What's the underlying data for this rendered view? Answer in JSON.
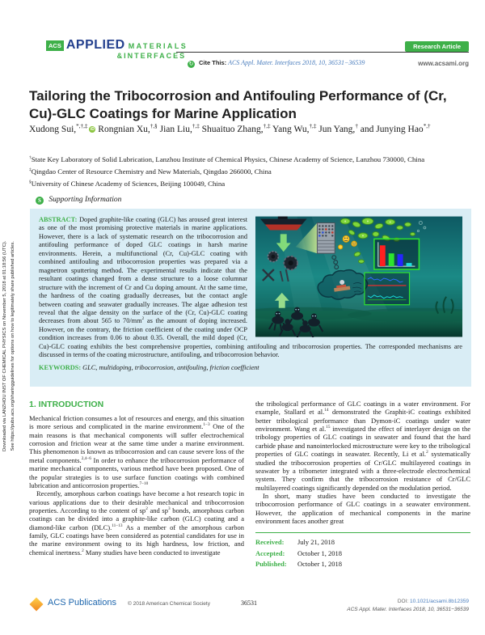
{
  "colors": {
    "acs_green": "#3eb049",
    "applied_blue": "#24408e",
    "link_blue": "#4a7dbd",
    "abstract_bg": "#d9edf5"
  },
  "sidebar": {
    "line1": "Downloaded via LANZHOU INST OF CHEMICAL PHYSICS on November 5, 2018 at 01:18:56 (UTC).",
    "line2": "See https://pubs.acs.org/sharingguidelines for options on how to legitimately share published articles."
  },
  "header": {
    "logo_acs": "ACS",
    "logo_applied": "APPLIED",
    "logo_materials": "MATERIALS",
    "logo_interfaces": "&INTERFACES",
    "cite_icon": "↻",
    "cite_label": "Cite This:",
    "cite_ref": "ACS Appl. Mater. Interfaces 2018, 10, 36531−36539",
    "badge": "Research Article",
    "website": "www.acsami.org"
  },
  "article": {
    "title": "Tailoring the Tribocorrosion and Antifouling Performance of (Cr, Cu)-GLC Coatings for Marine Application",
    "authors": [
      {
        "name": "Xudong Sui,",
        "sup": "*,†,‡",
        "orcid": true
      },
      {
        "name": "Rongnian Xu,",
        "sup": "†,§"
      },
      {
        "name": "Jian Liu,",
        "sup": "†,‡"
      },
      {
        "name": "Shuaituo Zhang,",
        "sup": "†,‡"
      },
      {
        "name": "Yang Wu,",
        "sup": "†,‡"
      },
      {
        "name": "Jun Yang,",
        "sup": "†"
      },
      {
        "name": "and Junying Hao",
        "sup": "*,†"
      }
    ],
    "affiliations": [
      {
        "sup": "†",
        "text": "State Key Laboratory of Solid Lubrication, Lanzhou Institute of Chemical Physics, Chinese Academy of Science, Lanzhou 730000, China"
      },
      {
        "sup": "‡",
        "text": "Qingdao Center of Resource Chemistry and New Materials, Qingdao 266000, China"
      },
      {
        "sup": "§",
        "text": "University of Chinese Academy of Sciences, Beijing 100049, China"
      }
    ],
    "supporting_icon": "S",
    "supporting": "Supporting Information",
    "abstract_label": "ABSTRACT: ",
    "abstract": [
      "Doped graphite-like coating (GLC) has aroused great interest as one of the most promising protective materials in marine applications. However, there is a lack of systematic research on the tribocorrosion and antifouling performance of doped GLC coatings in harsh marine environments. Herein, a multifunctional (Cr, Cu)-GLC coating with combined antifouling and tribocorrosion properties was prepared via a magnetron sputtering method. The experimental results indicate that the resultant coatings changed from a dense structure to a loose columnar structure with the increment of Cr and Cu doping amount. At the same time, the hardness of the coating gradually decreases, but the contact angle between coating and seawater gradually increases. The algae adhesion test reveal that the algae density on the surface of the (Cr, Cu)-GLC coating decreases from about 565 to 70/mm",
      {
        "s": "2"
      },
      " as the amount of doping increased. However, on the contrary, the friction coefficient of the coating under OCP condition increases from 0.06 to about 0.35. Overall, the mild doped (Cr, Cu)-GLC coating exhibits the best comprehensive properties, combining antifouling and tribocorrosion properties. The corresponded mechanisms are discussed in terms of the coating microstructure, antifouling, and tribocorrosion behavior."
    ],
    "keywords_label": "KEYWORDS: ",
    "keywords": "GLC, multidoping, tribocorrosion, antifouling, friction coefficient",
    "intro_heading": "1. INTRODUCTION",
    "intro_col1": [
      [
        "Mechanical friction consumes a lot of resources and energy, and this situation is more serious and complicated in the marine environment.",
        {
          "s": "1−3"
        },
        " One of the main reasons is that mechanical components will suffer electrochemical corrosion and friction wear at the same time under a marine environment. This phenomenon is known as tribocorrosion and can cause severe loss of the metal components.",
        {
          "s": "2,4−6"
        },
        " In order to enhance the tribocorrosion performance of marine mechanical components, various method have been proposed. One of the popular strategies is to use surface function coatings with combined lubrication and anticorrosion properties.",
        {
          "s": "7−10"
        }
      ],
      [
        "Recently, amorphous carbon coatings have become a hot research topic in various applications due to their desirable mechanical and tribocorrosion properties. According to the content of sp",
        {
          "s": "2"
        },
        " and sp",
        {
          "s": "3"
        },
        " bonds, amorphous carbon coatings can be divided into a graphite-like carbon (GLC) coating and a diamond-like carbon (DLC).",
        {
          "s": "11−13"
        },
        " As a member of the amorphous carbon family, GLC coatings have been considered as potential candidates for use in the marine environment owing to its high hardness, low friction, and chemical inertness.",
        {
          "s": "2"
        },
        " Many studies have been conducted to investigate"
      ]
    ],
    "intro_col2": [
      [
        "the tribological performance of GLC coatings in a water environment. For example, Stallard et al.",
        {
          "s": "14"
        },
        " demonstrated the Graphit-iC coatings exhibited better tribological performance than Dymon-iC coatings under water environment. Wang et al.",
        {
          "s": "15"
        },
        " investigated the effect of interlayer design on the tribology properties of GLC coatings in seawater and found that the hard carbide phase and nanointerlocked microstructure were key to the tribological properties of GLC coatings in seawater. Recently, Li et al.",
        {
          "s": "2"
        },
        " systematically studied the tribocorrosion properties of Cr/GLC multilayered coatings in seawater by a tribometer integrated with a three-electrode electrochemical system. They confirm that the tribocorrosion resistance of Cr/GLC multilayered coatings significantly depended on the modulation period."
      ],
      [
        "In short, many studies have been conducted to investigate the tribocorrosion performance of GLC coatings in a seawater environment. However, the application of mechanical components in the marine environment faces another great"
      ]
    ],
    "dates": [
      {
        "label": "Received:",
        "value": "July 21, 2018"
      },
      {
        "label": "Accepted:",
        "value": "October 1, 2018"
      },
      {
        "label": "Published:",
        "value": "October 1, 2018"
      }
    ]
  },
  "figure": {
    "name": "graphical-abstract",
    "bar_chart": {
      "colors": [
        "#ff2020",
        "#2de52d",
        "#2525ff",
        "#1fe0e0"
      ],
      "heights": [
        26,
        16,
        15,
        4
      ]
    }
  },
  "footer": {
    "logo": "ACS Publications",
    "copyright": "© 2018 American Chemical Society",
    "page": "36531",
    "doi_label": "DOI: ",
    "doi": "10.1021/acsami.8b12359",
    "citation": "ACS Appl. Mater. Interfaces 2018, 10, 36531−36539"
  }
}
